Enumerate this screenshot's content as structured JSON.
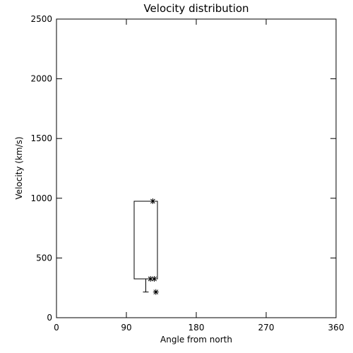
{
  "chart_data": {
    "type": "box",
    "title": "Velocity distribution",
    "xlabel": "Angle from north",
    "ylabel": "Velocity (km/s)",
    "xlim": [
      0,
      360
    ],
    "ylim": [
      0,
      2500
    ],
    "xticks": [
      0,
      90,
      180,
      270,
      360
    ],
    "yticks": [
      0,
      500,
      1000,
      1500,
      2000,
      2500
    ],
    "box": {
      "x_range": [
        100,
        130
      ],
      "lower": 325,
      "upper": 975,
      "whisker_x": 115,
      "whisker_low": 215
    },
    "points": {
      "x": [
        124,
        121,
        126,
        128
      ],
      "y": [
        975,
        325,
        325,
        215
      ]
    }
  }
}
